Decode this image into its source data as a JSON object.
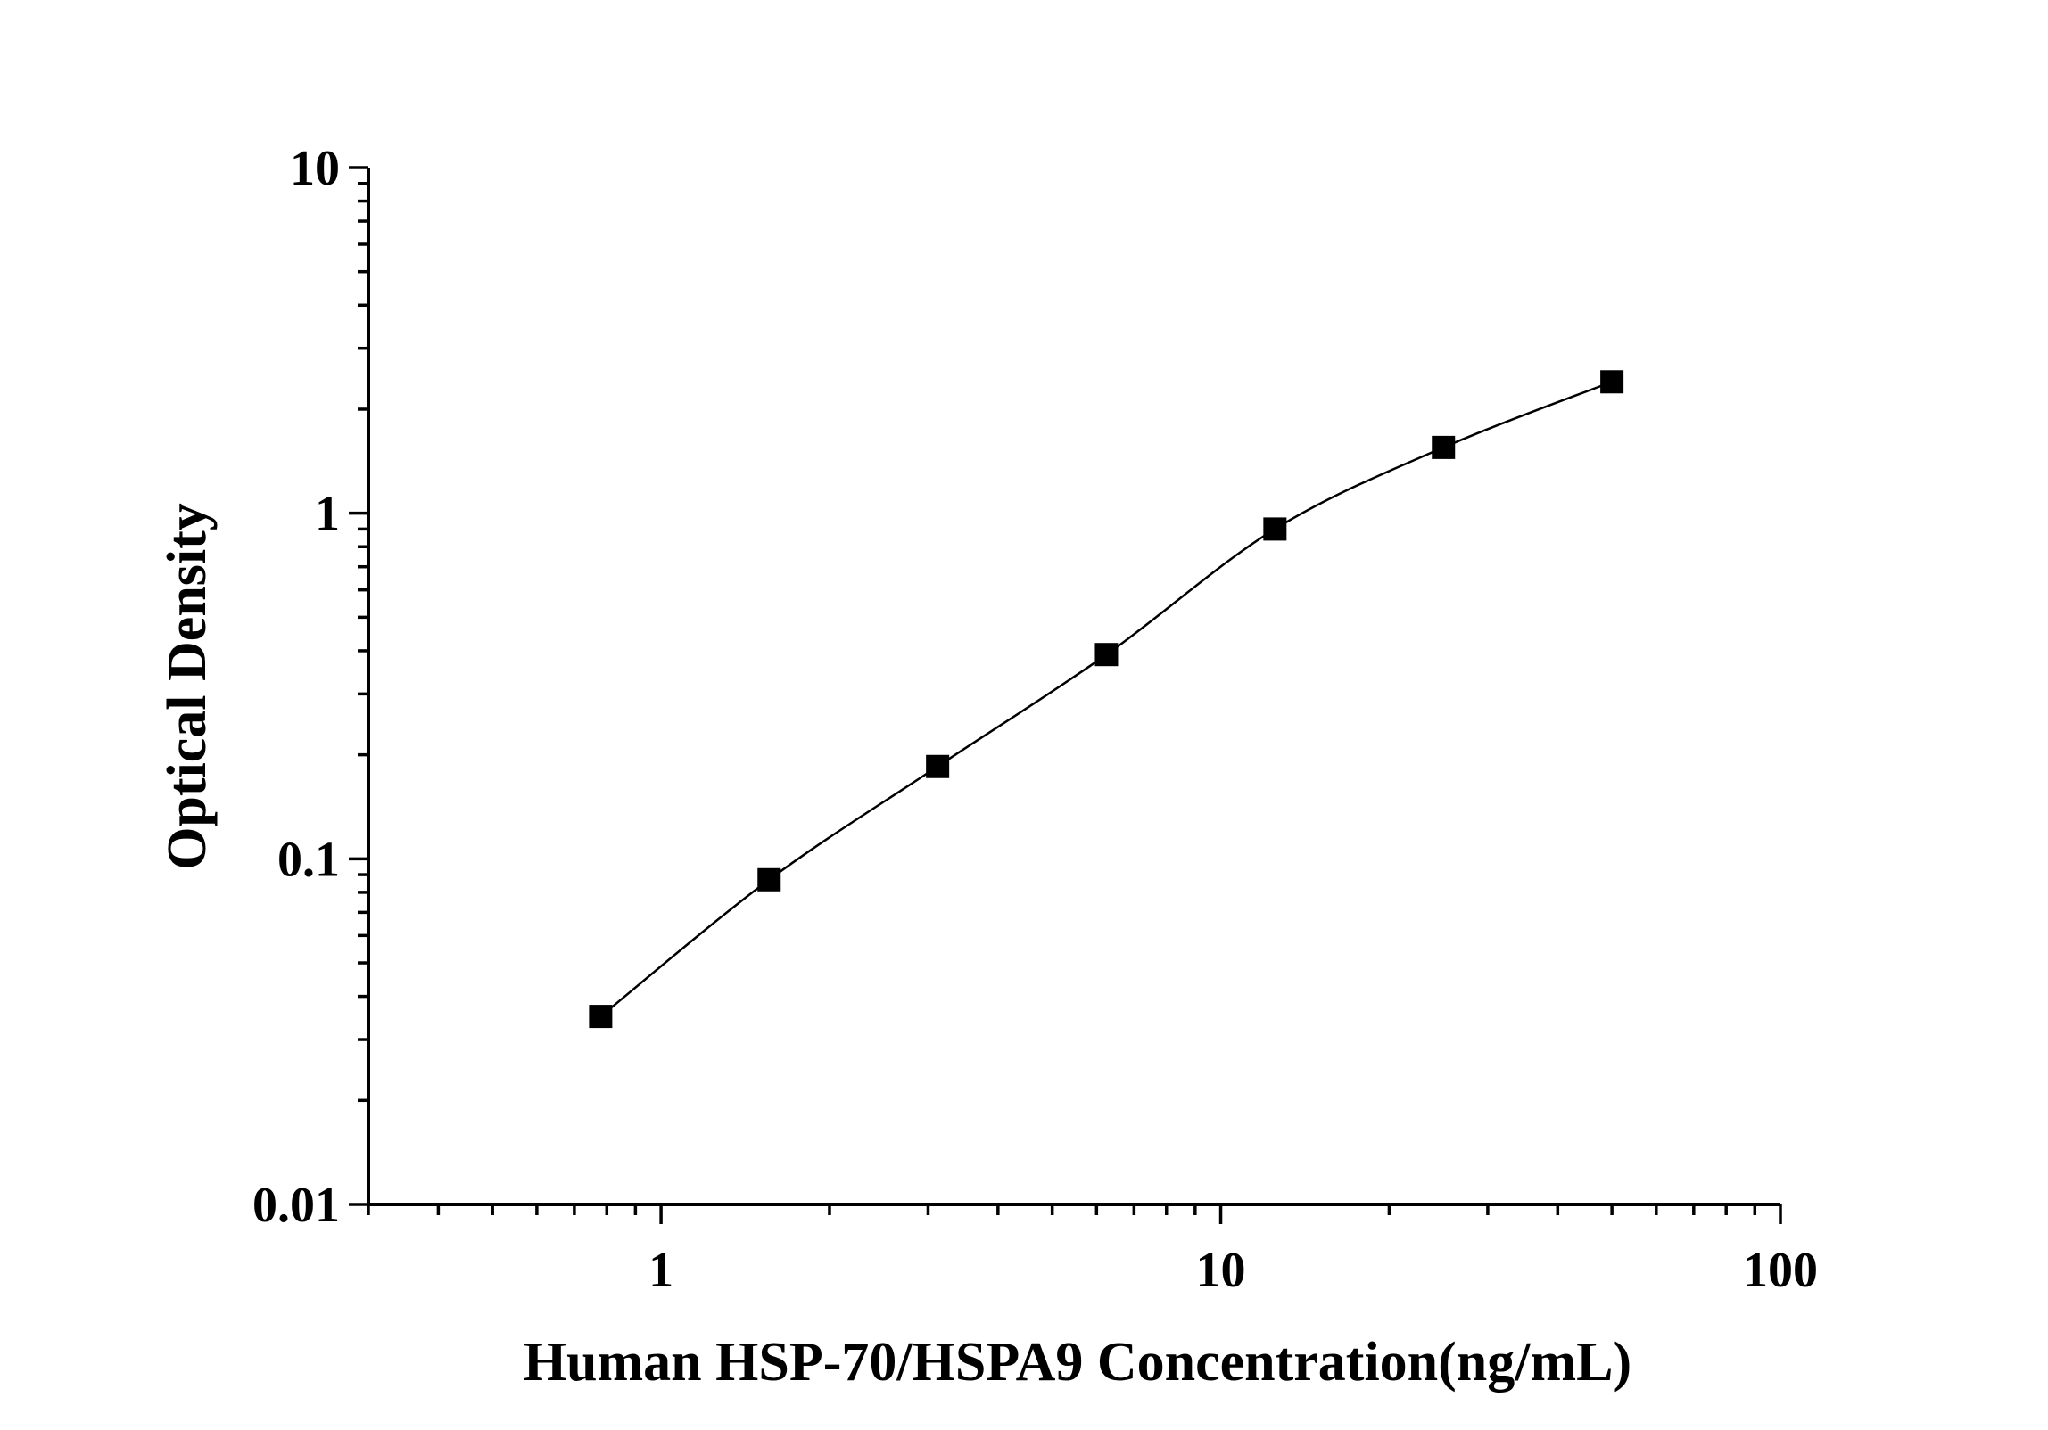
{
  "chart_data": {
    "type": "scatter",
    "title": "",
    "xlabel": "Human HSP-70/HSPA9 Concentration(ng/mL)",
    "ylabel": "Optical Density",
    "x_scale": "log",
    "y_scale": "log",
    "xlim": [
      0.3,
      100
    ],
    "ylim": [
      0.01,
      10
    ],
    "x_tick_labels": [
      "1",
      "10",
      "100"
    ],
    "y_tick_labels": [
      "0.01",
      "0.1",
      "1",
      "10"
    ],
    "grid": false,
    "legend": "none",
    "series": [
      {
        "marker": "square",
        "line": "smooth",
        "color": "#000000",
        "x": [
          0.78,
          1.56,
          3.12,
          6.25,
          12.5,
          25,
          50
        ],
        "y": [
          0.035,
          0.087,
          0.185,
          0.39,
          0.9,
          1.55,
          2.4
        ]
      }
    ]
  }
}
